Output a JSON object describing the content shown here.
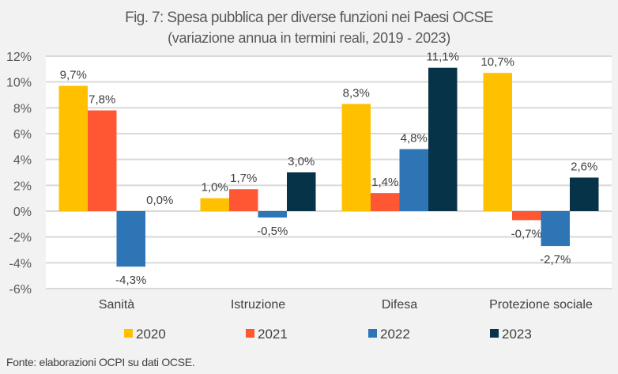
{
  "chart_data": {
    "type": "bar",
    "title": "Fig. 7: Spesa pubblica per diverse funzioni nei Paesi OCSE",
    "subtitle": "(variazione annua in termini reali, 2019 - 2023)",
    "xlabel": "",
    "ylabel": "",
    "ylim": [
      -6,
      12
    ],
    "yticks": [
      12,
      10,
      8,
      6,
      4,
      2,
      0,
      -2,
      -4,
      -6
    ],
    "ytick_labels": [
      "12%",
      "10%",
      "8%",
      "6%",
      "4%",
      "2%",
      "0%",
      "-2%",
      "-4%",
      "-6%"
    ],
    "grid": true,
    "legend_position": "bottom",
    "categories": [
      "Sanità",
      "Istruzione",
      "Difesa",
      "Protezione sociale"
    ],
    "series": [
      {
        "name": "2020",
        "color": "#ffc000",
        "values": [
          9.7,
          1.0,
          8.3,
          10.7
        ],
        "labels": [
          "9,7%",
          "1,0%",
          "8,3%",
          "10,7%"
        ]
      },
      {
        "name": "2021",
        "color": "#ff5733",
        "values": [
          7.8,
          1.7,
          1.4,
          -0.7
        ],
        "labels": [
          "7,8%",
          "1,7%",
          "1,4%",
          "-0,7%"
        ]
      },
      {
        "name": "2022",
        "color": "#2e75b6",
        "values": [
          -4.3,
          -0.5,
          4.8,
          -2.7
        ],
        "labels": [
          "-4,3%",
          "-0,5%",
          "4,8%",
          "-2,7%"
        ]
      },
      {
        "name": "2023",
        "color": "#073349",
        "values": [
          0.0,
          3.0,
          11.1,
          2.6
        ],
        "labels": [
          "0,0%",
          "3,0%",
          "11,1%",
          "2,6%"
        ]
      }
    ],
    "source": "Fonte: elaborazioni OCPI su dati OCSE."
  }
}
